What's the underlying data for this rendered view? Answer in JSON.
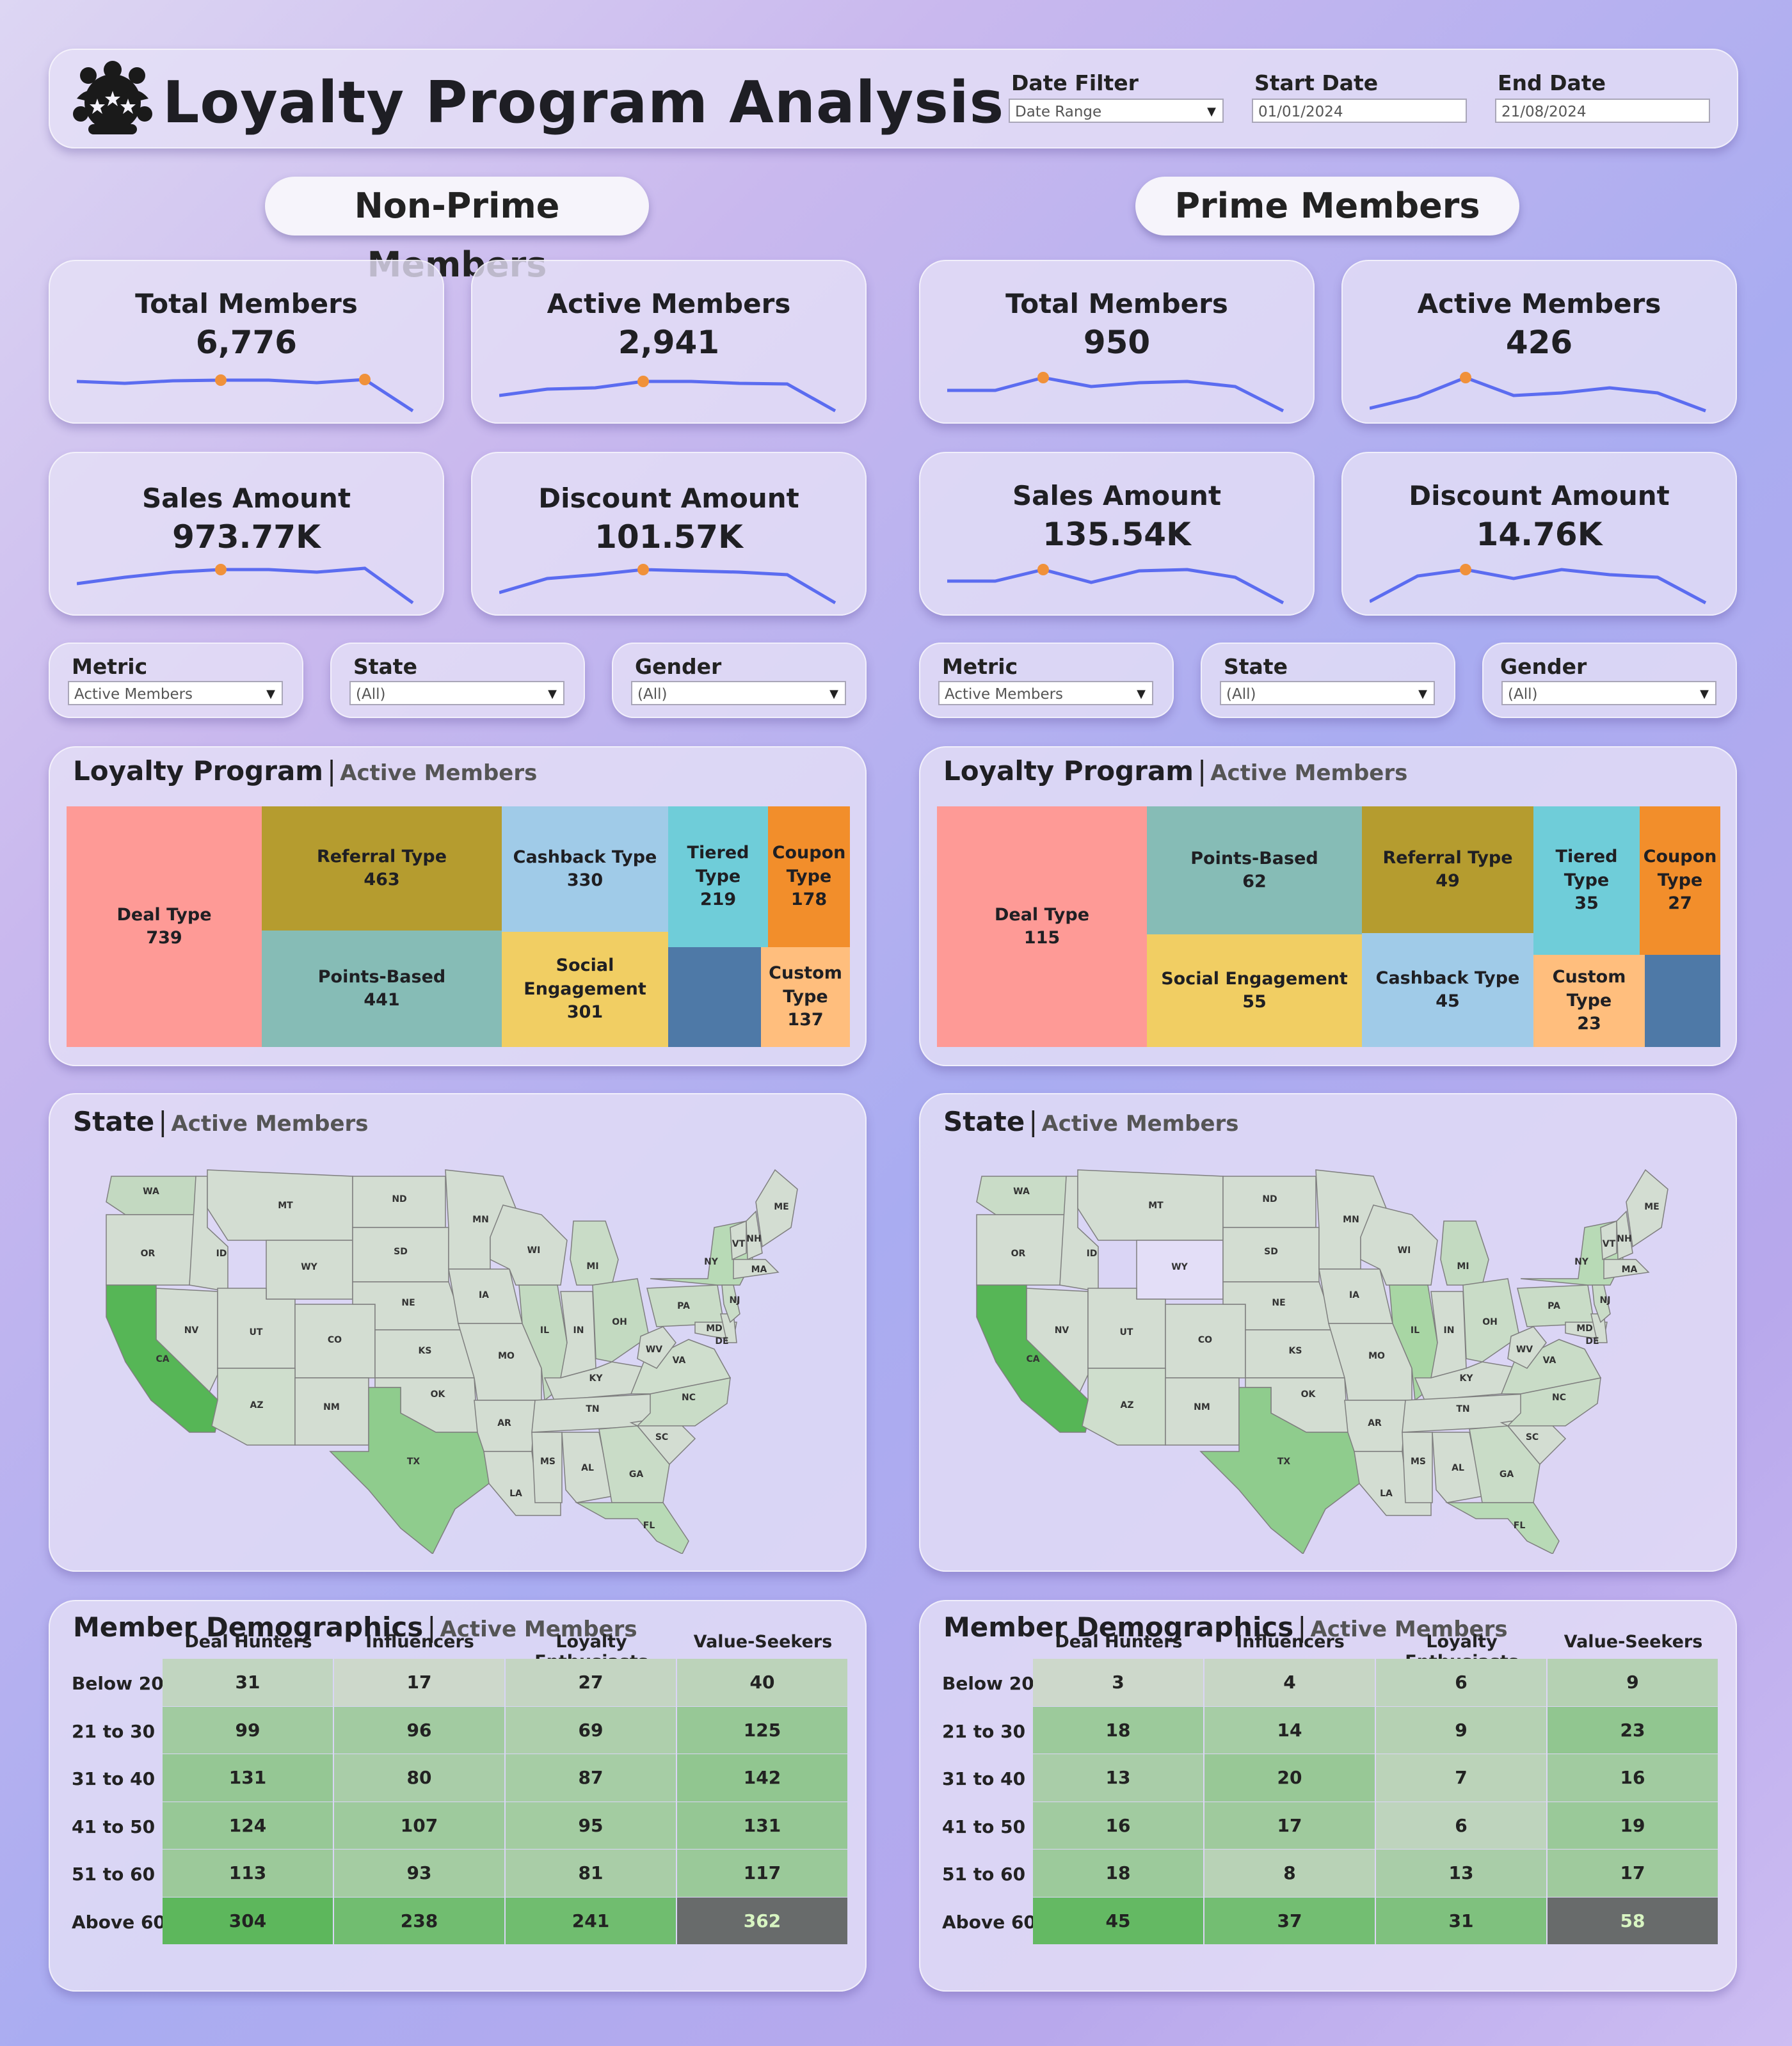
{
  "header": {
    "title": "Loyalty Program Analysis",
    "date_filter": {
      "label": "Date Filter",
      "value": "Date Range"
    },
    "start_date": {
      "label": "Start Date",
      "value": "01/01/2024"
    },
    "end_date": {
      "label": "End Date",
      "value": "21/08/2024"
    }
  },
  "non_prime": {
    "heading": "Non-Prime Members",
    "kpis": [
      {
        "label": "Total Members",
        "value": "6,776"
      },
      {
        "label": "Active Members",
        "value": "2,941"
      },
      {
        "label": "Sales Amount",
        "value": "973.77K"
      },
      {
        "label": "Discount Amount",
        "value": "101.57K"
      }
    ],
    "filters": [
      {
        "label": "Metric",
        "value": "Active Members"
      },
      {
        "label": "State",
        "value": "(All)"
      },
      {
        "label": "Gender",
        "value": "(All)"
      }
    ],
    "treemap": {
      "title": "Loyalty Program",
      "subtitle": "Active Members",
      "items": [
        {
          "name": "Deal Type",
          "value": "739"
        },
        {
          "name": "Referral Type",
          "value": "463"
        },
        {
          "name": "Points-Based",
          "value": "441"
        },
        {
          "name": "Cashback Type",
          "value": "330"
        },
        {
          "name": "Social Engagement",
          "value": "301"
        },
        {
          "name": "Tiered Type",
          "value": "219"
        },
        {
          "name": "Coupon Type",
          "value": "178"
        },
        {
          "name": "Custom Type",
          "value": "137"
        }
      ]
    },
    "map": {
      "title": "State",
      "subtitle": "Active Members"
    },
    "demographics": {
      "title": "Member Demographics",
      "subtitle": "Active Members",
      "columns": [
        "Deal Hunters",
        "Influencers",
        "Loyalty Enthusiasts",
        "Value-Seekers"
      ],
      "rows": [
        {
          "label": "Below 20",
          "values": [
            "31",
            "17",
            "27",
            "40"
          ]
        },
        {
          "label": "21 to 30",
          "values": [
            "99",
            "96",
            "69",
            "125"
          ]
        },
        {
          "label": "31 to 40",
          "values": [
            "131",
            "80",
            "87",
            "142"
          ]
        },
        {
          "label": "41 to 50",
          "values": [
            "124",
            "107",
            "95",
            "131"
          ]
        },
        {
          "label": "51 to 60",
          "values": [
            "113",
            "93",
            "81",
            "117"
          ]
        },
        {
          "label": "Above 60",
          "values": [
            "304",
            "238",
            "241",
            "362"
          ]
        }
      ]
    }
  },
  "prime": {
    "heading": "Prime Members",
    "kpis": [
      {
        "label": "Total Members",
        "value": "950"
      },
      {
        "label": "Active Members",
        "value": "426"
      },
      {
        "label": "Sales Amount",
        "value": "135.54K"
      },
      {
        "label": "Discount Amount",
        "value": "14.76K"
      }
    ],
    "filters": [
      {
        "label": "Metric",
        "value": "Active Members"
      },
      {
        "label": "State",
        "value": "(All)"
      },
      {
        "label": "Gender",
        "value": "(All)"
      }
    ],
    "treemap": {
      "title": "Loyalty Program",
      "subtitle": "Active Members",
      "items": [
        {
          "name": "Deal Type",
          "value": "115"
        },
        {
          "name": "Points-Based",
          "value": "62"
        },
        {
          "name": "Social Engagement",
          "value": "55"
        },
        {
          "name": "Referral Type",
          "value": "49"
        },
        {
          "name": "Cashback Type",
          "value": "45"
        },
        {
          "name": "Tiered Type",
          "value": "35"
        },
        {
          "name": "Coupon Type",
          "value": "27"
        },
        {
          "name": "Custom Type",
          "value": "23"
        }
      ]
    },
    "map": {
      "title": "State",
      "subtitle": "Active Members"
    },
    "demographics": {
      "title": "Member Demographics",
      "subtitle": "Active Members",
      "columns": [
        "Deal Hunters",
        "Influencers",
        "Loyalty Enthusiasts",
        "Value-Seekers"
      ],
      "rows": [
        {
          "label": "Below 20",
          "values": [
            "3",
            "4",
            "6",
            "9"
          ]
        },
        {
          "label": "21 to 30",
          "values": [
            "18",
            "14",
            "9",
            "23"
          ]
        },
        {
          "label": "31 to 40",
          "values": [
            "13",
            "20",
            "7",
            "16"
          ]
        },
        {
          "label": "41 to 50",
          "values": [
            "16",
            "17",
            "6",
            "19"
          ]
        },
        {
          "label": "51 to 60",
          "values": [
            "18",
            "8",
            "13",
            "17"
          ]
        },
        {
          "label": "Above 60",
          "values": [
            "45",
            "37",
            "31",
            "58"
          ]
        }
      ]
    }
  },
  "state_labels": [
    "WA",
    "OR",
    "ID",
    "MT",
    "WY",
    "NV",
    "CA",
    "UT",
    "CO",
    "AZ",
    "NM",
    "ND",
    "SD",
    "NE",
    "KS",
    "OK",
    "TX",
    "MN",
    "IA",
    "MO",
    "AR",
    "LA",
    "WI",
    "IL",
    "MI",
    "IN",
    "OH",
    "KY",
    "TN",
    "MS",
    "AL",
    "GA",
    "FL",
    "SC",
    "NC",
    "VA",
    "WV",
    "PA",
    "NY",
    "VT",
    "NH",
    "ME",
    "MA",
    "MD",
    "DE",
    "NJ"
  ],
  "colors": {
    "line": "#5b6cf0",
    "marker": "#f0913a",
    "deal": "#fe9a96",
    "referral": "#b59c2f",
    "points": "#86bcb6",
    "cashback": "#a0cbe8",
    "social": "#f1ce63",
    "tiered": "#6fcdd9",
    "coupon": "#f28e2b",
    "custom": "#ffbe7d",
    "other": "#4e79a7",
    "heat_max": "#686b6b"
  }
}
